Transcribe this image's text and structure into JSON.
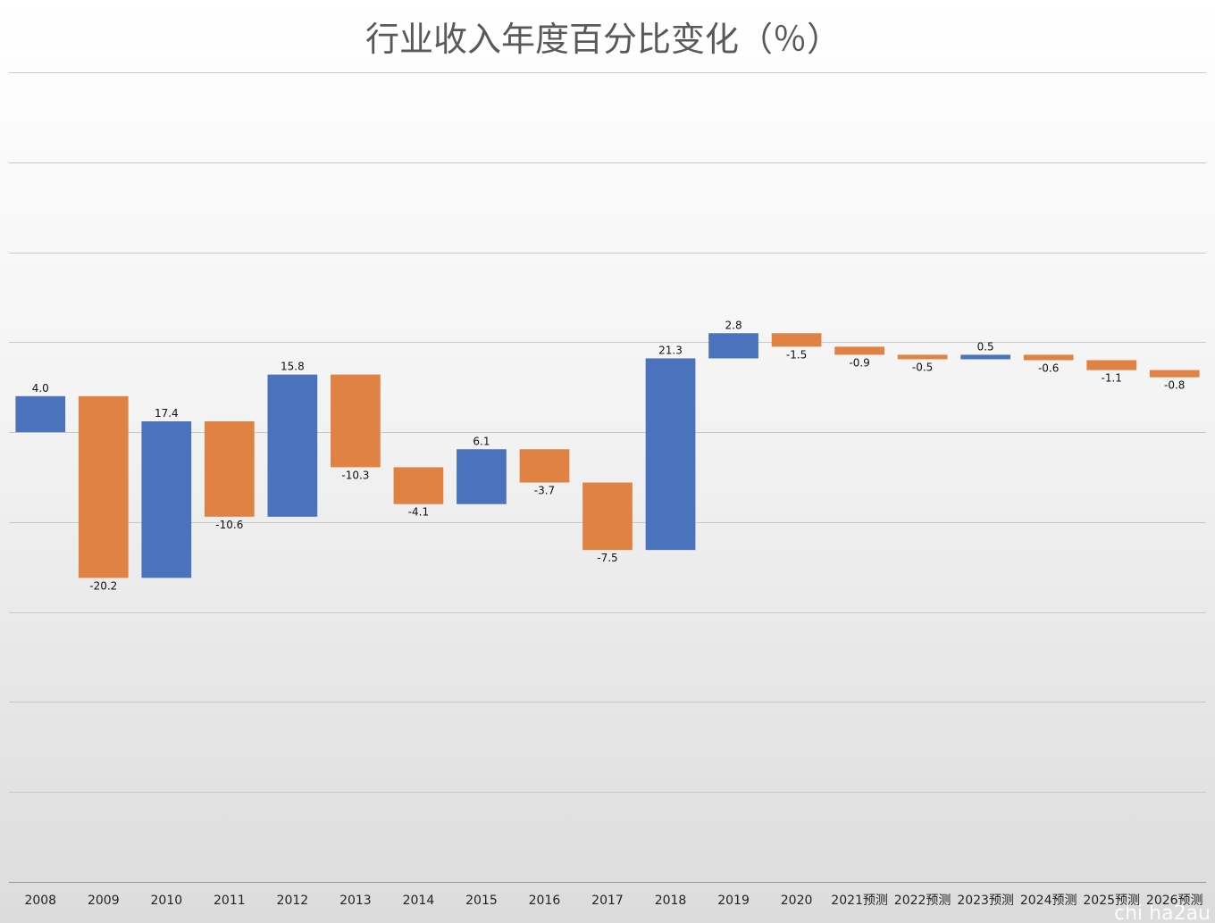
{
  "chart_data": {
    "type": "bar",
    "subtype": "waterfall",
    "title": "行业收入年度百分比变化（％）",
    "xlabel": "",
    "ylabel": "",
    "ylim": [
      -50,
      40
    ],
    "grid": true,
    "legend": "none",
    "categories": [
      "2008",
      "2009",
      "2010",
      "2011",
      "2012",
      "2013",
      "2014",
      "2015",
      "2016",
      "2017",
      "2018",
      "2019",
      "2020",
      "2021预测",
      "2022预测",
      "2023预测",
      "2024预测",
      "2025预测",
      "2026预测"
    ],
    "values": [
      4.0,
      -20.2,
      17.4,
      -10.6,
      15.8,
      -10.3,
      -4.1,
      6.1,
      -3.7,
      -7.5,
      21.3,
      2.8,
      -1.5,
      -0.9,
      -0.5,
      0.5,
      -0.6,
      -1.1,
      -0.8
    ],
    "value_labels": [
      "4.0",
      "-20.2",
      "17.4",
      "-10.6",
      "15.8",
      "-10.3",
      "-4.1",
      "6.1",
      "-3.7",
      "-7.5",
      "21.3",
      "2.8",
      "-1.5",
      "-0.9",
      "-0.5",
      "0.5",
      "-0.6",
      "-1.1",
      "-0.8"
    ],
    "colors": {
      "increase": "#4a72bd",
      "decrease": "#e08244"
    }
  },
  "watermark": "chi ha2au"
}
